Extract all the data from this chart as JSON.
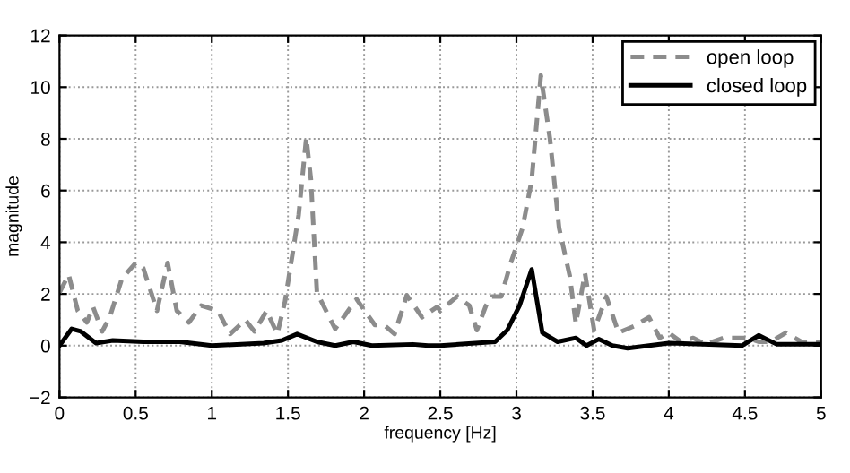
{
  "chart_data": {
    "type": "line",
    "xlabel": "frequency [Hz]",
    "ylabel": "magnitude",
    "xlim": [
      0,
      5
    ],
    "xticks": [
      0,
      0.5,
      1,
      1.5,
      2,
      2.5,
      3,
      3.5,
      4,
      4.5,
      5
    ],
    "ylim": [
      -2,
      12
    ],
    "yticks": [
      -2,
      0,
      2,
      4,
      6,
      8,
      10,
      12
    ],
    "grid": true,
    "legend": "top right",
    "series": [
      {
        "name": "open loop",
        "color": "#8c8c8c",
        "line_style": "dashed",
        "x": [
          0,
          0.06,
          0.12,
          0.18,
          0.22,
          0.28,
          0.33,
          0.41,
          0.5,
          0.55,
          0.64,
          0.71,
          0.77,
          0.85,
          0.93,
          1.04,
          1.12,
          1.22,
          1.28,
          1.36,
          1.43,
          1.48,
          1.57,
          1.62,
          1.65,
          1.69,
          1.81,
          1.95,
          2.07,
          2.13,
          2.2,
          2.28,
          2.38,
          2.48,
          2.5,
          2.61,
          2.69,
          2.74,
          2.8,
          2.84,
          2.9,
          2.96,
          3.04,
          3.1,
          3.16,
          3.22,
          3.28,
          3.35,
          3.39,
          3.45,
          3.51,
          3.59,
          3.67,
          3.77,
          3.87,
          3.94,
          4.0,
          4.08,
          4.16,
          4.24,
          4.36,
          4.52,
          4.59,
          4.67,
          4.77,
          4.87,
          5.0
        ],
        "values": [
          2.05,
          2.75,
          1.35,
          0.9,
          1.5,
          0.55,
          1.1,
          2.6,
          3.2,
          3.0,
          1.35,
          3.2,
          1.35,
          0.9,
          1.55,
          1.35,
          0.45,
          1.0,
          0.55,
          1.35,
          0.45,
          1.7,
          5.05,
          8.05,
          6.45,
          2.05,
          0.65,
          1.8,
          0.8,
          0.8,
          0.45,
          1.95,
          1.1,
          1.5,
          1.35,
          1.9,
          1.55,
          0.6,
          1.55,
          1.9,
          1.9,
          3.15,
          4.55,
          6.4,
          10.45,
          8.0,
          4.55,
          2.7,
          0.85,
          2.8,
          0.6,
          1.9,
          0.5,
          0.75,
          1.1,
          0.3,
          0.5,
          0.15,
          0.3,
          0.05,
          0.3,
          0.3,
          0.15,
          0.15,
          0.5,
          0.15,
          0.15
        ]
      },
      {
        "name": "closed loop",
        "color": "#000000",
        "line_style": "solid",
        "x": [
          0,
          0.08,
          0.14,
          0.24,
          0.35,
          0.55,
          0.79,
          1.0,
          1.34,
          1.46,
          1.56,
          1.69,
          1.81,
          1.93,
          2.05,
          2.32,
          2.42,
          2.5,
          2.86,
          2.94,
          3.02,
          3.1,
          3.17,
          3.27,
          3.39,
          3.46,
          3.54,
          3.63,
          3.73,
          4.0,
          4.48,
          4.59,
          4.71,
          5.0
        ],
        "values": [
          0,
          0.65,
          0.55,
          0.1,
          0.2,
          0.15,
          0.15,
          0,
          0.1,
          0.2,
          0.45,
          0.15,
          0,
          0.15,
          0,
          0.05,
          0,
          0,
          0.15,
          0.6,
          1.55,
          2.95,
          0.5,
          0.15,
          0.3,
          0,
          0.25,
          0,
          -0.1,
          0.1,
          0,
          0.4,
          0.05,
          0.05
        ]
      }
    ]
  }
}
